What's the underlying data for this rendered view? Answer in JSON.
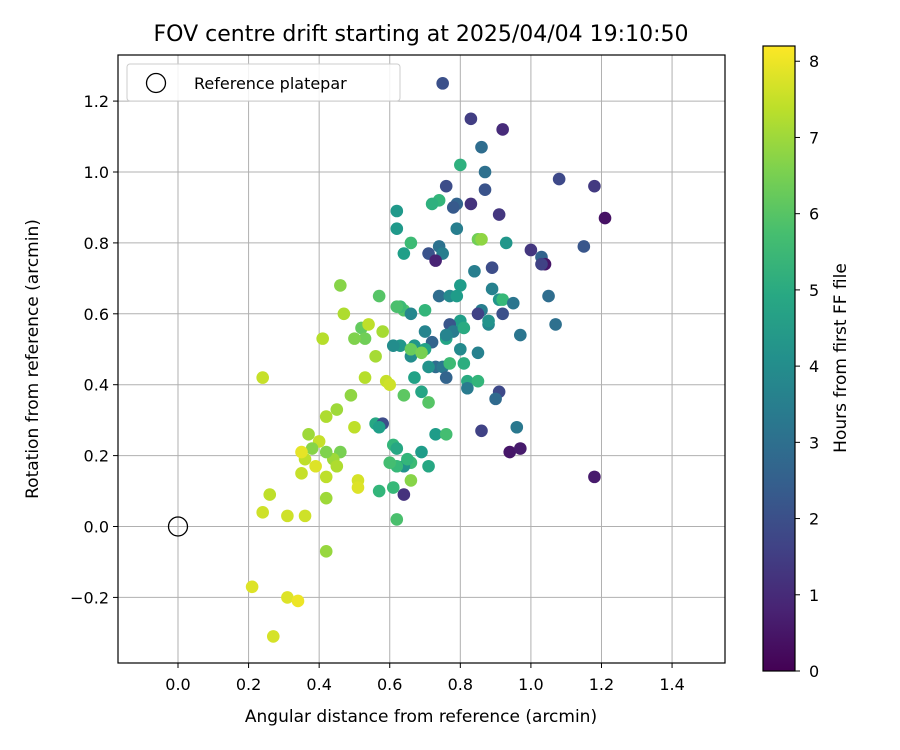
{
  "chart_data": {
    "type": "scatter",
    "title": "FOV centre drift starting at 2025/04/04 19:10:50",
    "xlabel": "Angular distance from reference (arcmin)",
    "ylabel": "Rotation from reference (arcmin)",
    "xlim": [
      -0.17,
      1.55
    ],
    "ylim": [
      -0.385,
      1.33
    ],
    "x_ticks": [
      0.0,
      0.2,
      0.4,
      0.6,
      0.8,
      1.0,
      1.2,
      1.4
    ],
    "x_tick_labels": [
      "0.0",
      "0.2",
      "0.4",
      "0.6",
      "0.8",
      "1.0",
      "1.2",
      "1.4"
    ],
    "y_ticks": [
      -0.2,
      0.0,
      0.2,
      0.4,
      0.6,
      0.8,
      1.0,
      1.2
    ],
    "y_tick_labels": [
      "−0.2",
      "0.0",
      "0.2",
      "0.4",
      "0.6",
      "0.8",
      "1.0",
      "1.2"
    ],
    "grid": true,
    "legend_position": "top-left",
    "legend_entries": [
      "Reference platepar"
    ],
    "reference_point": [
      0.0,
      0.0
    ],
    "colorbar": {
      "label": "Hours from first FF file",
      "range": [
        0,
        8.2
      ],
      "ticks": [
        0,
        1,
        2,
        3,
        4,
        5,
        6,
        7,
        8
      ],
      "tick_labels": [
        "0",
        "1",
        "2",
        "3",
        "4",
        "5",
        "6",
        "7",
        "8"
      ],
      "colormap": "viridis"
    },
    "points": [
      [
        0.75,
        1.25,
        2.0
      ],
      [
        0.83,
        1.15,
        1.5
      ],
      [
        0.92,
        1.12,
        1.0
      ],
      [
        0.86,
        1.07,
        2.9
      ],
      [
        0.8,
        1.02,
        5.2
      ],
      [
        0.87,
        1.0,
        3.0
      ],
      [
        1.08,
        0.98,
        1.8
      ],
      [
        1.18,
        0.96,
        1.4
      ],
      [
        0.76,
        0.96,
        1.9
      ],
      [
        0.87,
        0.95,
        2.1
      ],
      [
        0.74,
        0.92,
        5.4
      ],
      [
        0.72,
        0.91,
        5.2
      ],
      [
        0.79,
        0.91,
        2.6
      ],
      [
        0.83,
        0.91,
        1.2
      ],
      [
        0.78,
        0.9,
        2.3
      ],
      [
        0.62,
        0.89,
        4.4
      ],
      [
        0.91,
        0.88,
        1.3
      ],
      [
        1.21,
        0.87,
        0.4
      ],
      [
        0.62,
        0.84,
        4.4
      ],
      [
        0.79,
        0.84,
        3.5
      ],
      [
        0.85,
        0.81,
        6.4
      ],
      [
        0.86,
        0.81,
        6.8
      ],
      [
        0.93,
        0.8,
        4.3
      ],
      [
        0.66,
        0.8,
        5.6
      ],
      [
        0.74,
        0.79,
        3.1
      ],
      [
        1.0,
        0.78,
        1.3
      ],
      [
        1.15,
        0.79,
        2.2
      ],
      [
        0.71,
        0.77,
        2.1
      ],
      [
        0.75,
        0.77,
        3.5
      ],
      [
        0.64,
        0.77,
        4.6
      ],
      [
        1.03,
        0.76,
        2.6
      ],
      [
        0.73,
        0.75,
        0.8
      ],
      [
        1.04,
        0.74,
        0.5
      ],
      [
        1.03,
        0.74,
        1.6
      ],
      [
        0.89,
        0.73,
        1.9
      ],
      [
        0.84,
        0.72,
        3.5
      ],
      [
        0.74,
        0.65,
        2.9
      ],
      [
        0.77,
        0.65,
        3.9
      ],
      [
        0.79,
        0.65,
        4.5
      ],
      [
        0.8,
        0.68,
        4.5
      ],
      [
        0.86,
        0.61,
        3.5
      ],
      [
        0.89,
        0.67,
        3.6
      ],
      [
        0.91,
        0.64,
        4.3
      ],
      [
        0.92,
        0.64,
        5.5
      ],
      [
        0.95,
        0.63,
        3.2
      ],
      [
        1.05,
        0.65,
        2.9
      ],
      [
        0.92,
        0.6,
        2.0
      ],
      [
        0.85,
        0.6,
        1.6
      ],
      [
        1.07,
        0.57,
        3.0
      ],
      [
        0.88,
        0.57,
        3.8
      ],
      [
        0.88,
        0.58,
        4.2
      ],
      [
        0.8,
        0.58,
        4.6
      ],
      [
        0.8,
        0.57,
        4.6
      ],
      [
        0.77,
        0.57,
        2.2
      ],
      [
        0.78,
        0.55,
        3.4
      ],
      [
        0.81,
        0.56,
        5.0
      ],
      [
        0.76,
        0.53,
        4.8
      ],
      [
        0.76,
        0.54,
        3.7
      ],
      [
        0.72,
        0.52,
        2.6
      ],
      [
        0.7,
        0.55,
        3.7
      ],
      [
        0.7,
        0.5,
        4.7
      ],
      [
        0.67,
        0.51,
        4.3
      ],
      [
        0.66,
        0.48,
        4.0
      ],
      [
        0.73,
        0.45,
        2.9
      ],
      [
        0.75,
        0.45,
        3.3
      ],
      [
        0.8,
        0.5,
        3.9
      ],
      [
        0.81,
        0.46,
        5.1
      ],
      [
        0.85,
        0.49,
        3.6
      ],
      [
        0.77,
        0.46,
        5.6
      ],
      [
        0.76,
        0.42,
        2.6
      ],
      [
        0.82,
        0.41,
        5.0
      ],
      [
        0.85,
        0.41,
        5.4
      ],
      [
        0.82,
        0.39,
        3.4
      ],
      [
        0.91,
        0.38,
        1.8
      ],
      [
        0.9,
        0.36,
        2.8
      ],
      [
        0.86,
        0.27,
        1.6
      ],
      [
        0.96,
        0.28,
        3.3
      ],
      [
        0.94,
        0.21,
        0.5
      ],
      [
        0.97,
        0.22,
        0.6
      ],
      [
        1.18,
        0.14,
        0.6
      ],
      [
        0.97,
        0.54,
        3.2
      ],
      [
        0.71,
        0.45,
        4.2
      ],
      [
        0.69,
        0.38,
        4.8
      ],
      [
        0.71,
        0.35,
        6.0
      ],
      [
        0.73,
        0.26,
        4.5
      ],
      [
        0.76,
        0.26,
        5.7
      ],
      [
        0.63,
        0.51,
        4.3
      ],
      [
        0.66,
        0.5,
        6.3
      ],
      [
        0.69,
        0.49,
        6.5
      ],
      [
        0.61,
        0.51,
        4.0
      ],
      [
        0.64,
        0.37,
        6.1
      ],
      [
        0.67,
        0.42,
        4.7
      ],
      [
        0.71,
        0.17,
        4.9
      ],
      [
        0.69,
        0.21,
        4.5
      ],
      [
        0.66,
        0.18,
        5.6
      ],
      [
        0.64,
        0.17,
        4.2
      ],
      [
        0.62,
        0.17,
        5.5
      ],
      [
        0.6,
        0.18,
        5.7
      ],
      [
        0.61,
        0.23,
        5.4
      ],
      [
        0.56,
        0.29,
        4.9
      ],
      [
        0.58,
        0.29,
        1.9
      ],
      [
        0.57,
        0.28,
        4.6
      ],
      [
        0.62,
        0.22,
        4.9
      ],
      [
        0.65,
        0.19,
        5.4
      ],
      [
        0.66,
        0.13,
        6.7
      ],
      [
        0.64,
        0.09,
        1.2
      ],
      [
        0.61,
        0.11,
        5.5
      ],
      [
        0.57,
        0.1,
        5.4
      ],
      [
        0.62,
        0.02,
        5.8
      ],
      [
        0.64,
        0.61,
        5.9
      ],
      [
        0.63,
        0.62,
        5.6
      ],
      [
        0.62,
        0.62,
        5.8
      ],
      [
        0.66,
        0.6,
        3.8
      ],
      [
        0.7,
        0.61,
        5.4
      ],
      [
        0.57,
        0.65,
        6.0
      ],
      [
        0.52,
        0.56,
        6.2
      ],
      [
        0.53,
        0.53,
        6.4
      ],
      [
        0.5,
        0.53,
        6.6
      ],
      [
        0.46,
        0.68,
        6.7
      ],
      [
        0.47,
        0.6,
        7.2
      ],
      [
        0.54,
        0.57,
        7.4
      ],
      [
        0.58,
        0.55,
        7.1
      ],
      [
        0.56,
        0.48,
        7.1
      ],
      [
        0.53,
        0.42,
        7.3
      ],
      [
        0.59,
        0.41,
        7.5
      ],
      [
        0.6,
        0.4,
        7.6
      ],
      [
        0.49,
        0.37,
        6.8
      ],
      [
        0.45,
        0.33,
        7.0
      ],
      [
        0.42,
        0.31,
        7.2
      ],
      [
        0.41,
        0.53,
        7.3
      ],
      [
        0.5,
        0.28,
        7.4
      ],
      [
        0.46,
        0.21,
        6.5
      ],
      [
        0.44,
        0.19,
        7.0
      ],
      [
        0.45,
        0.17,
        7.2
      ],
      [
        0.42,
        0.21,
        6.6
      ],
      [
        0.4,
        0.24,
        7.5
      ],
      [
        0.37,
        0.26,
        7.0
      ],
      [
        0.38,
        0.22,
        6.7
      ],
      [
        0.36,
        0.19,
        7.4
      ],
      [
        0.35,
        0.21,
        7.9
      ],
      [
        0.39,
        0.17,
        7.8
      ],
      [
        0.35,
        0.15,
        7.5
      ],
      [
        0.42,
        0.14,
        7.4
      ],
      [
        0.42,
        0.08,
        7.0
      ],
      [
        0.51,
        0.13,
        7.7
      ],
      [
        0.51,
        0.11,
        7.8
      ],
      [
        0.24,
        0.42,
        7.5
      ],
      [
        0.26,
        0.09,
        7.4
      ],
      [
        0.24,
        0.04,
        7.6
      ],
      [
        0.31,
        0.03,
        7.6
      ],
      [
        0.36,
        0.03,
        7.6
      ],
      [
        0.42,
        -0.07,
        6.9
      ],
      [
        0.21,
        -0.17,
        7.8
      ],
      [
        0.31,
        -0.2,
        7.8
      ],
      [
        0.34,
        -0.21,
        8.0
      ],
      [
        0.27,
        -0.31,
        7.7
      ]
    ]
  }
}
